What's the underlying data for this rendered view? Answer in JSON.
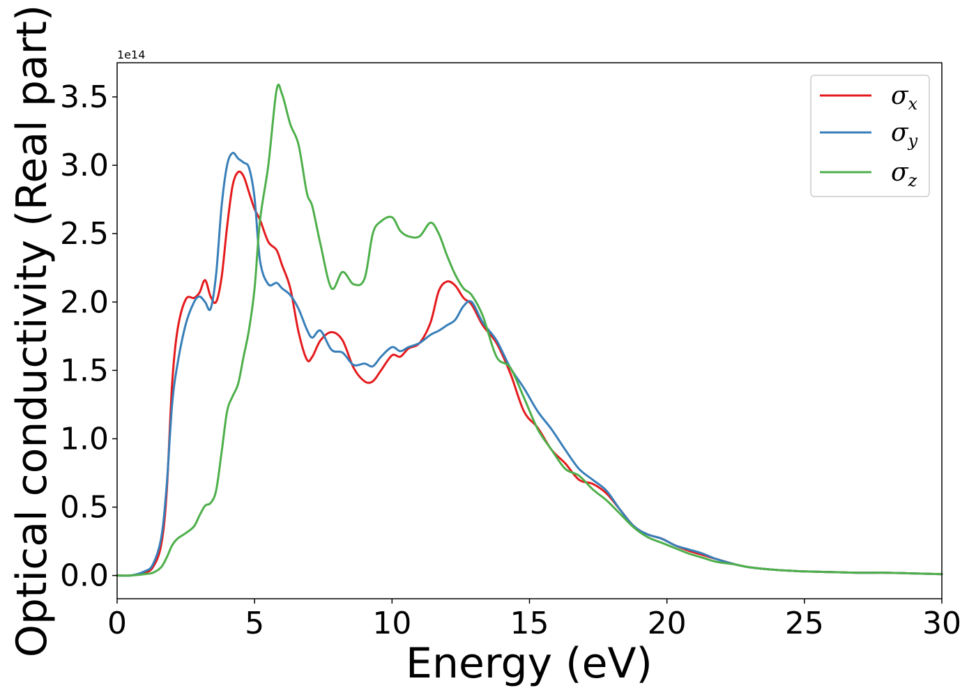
{
  "chart_data": {
    "type": "line",
    "xlabel": "Energy (eV)",
    "ylabel": "Optical conductivity (Real part)",
    "y_offset_label": "1e14",
    "xlim": [
      0,
      30
    ],
    "ylim": [
      -0.17,
      3.75
    ],
    "xticks": [
      0,
      5,
      10,
      15,
      20,
      25,
      30
    ],
    "xtick_labels": [
      "0",
      "5",
      "10",
      "15",
      "20",
      "25",
      "30"
    ],
    "yticks": [
      0.0,
      0.5,
      1.0,
      1.5,
      2.0,
      2.5,
      3.0,
      3.5
    ],
    "ytick_labels": [
      "0.0",
      "0.5",
      "1.0",
      "1.5",
      "2.0",
      "2.5",
      "3.0",
      "3.5"
    ],
    "grid": false,
    "legend_position": "top-right",
    "series": [
      {
        "name": "σx",
        "symbol": "σ",
        "subscript": "x",
        "color": "#e41a1c",
        "x": [
          0,
          0.5,
          1.0,
          1.3,
          1.6,
          1.8,
          2.0,
          2.2,
          2.5,
          2.8,
          3.0,
          3.2,
          3.4,
          3.6,
          3.8,
          4.0,
          4.2,
          4.4,
          4.6,
          4.8,
          5.0,
          5.2,
          5.5,
          5.8,
          6.0,
          6.3,
          6.6,
          6.9,
          7.1,
          7.4,
          7.8,
          8.2,
          8.6,
          9.0,
          9.3,
          9.6,
          10.0,
          10.3,
          10.6,
          11.0,
          11.4,
          11.7,
          12.0,
          12.3,
          12.6,
          12.9,
          13.3,
          13.8,
          14.3,
          14.8,
          15.3,
          15.8,
          16.3,
          16.8,
          17.3,
          17.8,
          18.3,
          18.8,
          19.3,
          19.8,
          20.3,
          20.8,
          21.3,
          21.8,
          22.5,
          23.0,
          24.0,
          25.0,
          26.0,
          27.0,
          28.0,
          29.0,
          30.0
        ],
        "values": [
          0.0,
          0.0,
          0.02,
          0.06,
          0.22,
          0.6,
          1.4,
          1.8,
          2.02,
          2.03,
          2.07,
          2.16,
          2.04,
          2.0,
          2.18,
          2.55,
          2.85,
          2.95,
          2.92,
          2.8,
          2.68,
          2.6,
          2.44,
          2.38,
          2.27,
          2.1,
          1.78,
          1.58,
          1.6,
          1.72,
          1.78,
          1.72,
          1.52,
          1.42,
          1.42,
          1.5,
          1.61,
          1.6,
          1.66,
          1.7,
          1.85,
          2.08,
          2.15,
          2.12,
          2.03,
          1.98,
          1.83,
          1.7,
          1.48,
          1.2,
          1.08,
          0.92,
          0.82,
          0.7,
          0.67,
          0.6,
          0.48,
          0.36,
          0.3,
          0.27,
          0.22,
          0.18,
          0.15,
          0.12,
          0.08,
          0.06,
          0.04,
          0.03,
          0.025,
          0.02,
          0.02,
          0.015,
          0.01
        ]
      },
      {
        "name": "σy",
        "symbol": "σ",
        "subscript": "y",
        "color": "#377eb8",
        "x": [
          0,
          0.5,
          1.0,
          1.3,
          1.6,
          1.8,
          2.0,
          2.2,
          2.5,
          2.8,
          3.0,
          3.2,
          3.4,
          3.6,
          3.8,
          4.0,
          4.2,
          4.4,
          4.6,
          4.8,
          5.0,
          5.2,
          5.5,
          5.8,
          6.0,
          6.3,
          6.6,
          6.9,
          7.1,
          7.4,
          7.8,
          8.2,
          8.6,
          9.0,
          9.3,
          9.6,
          10.0,
          10.3,
          10.6,
          11.0,
          11.4,
          11.7,
          12.0,
          12.3,
          12.6,
          12.9,
          13.3,
          13.8,
          14.3,
          14.8,
          15.3,
          15.8,
          16.3,
          16.8,
          17.3,
          17.8,
          18.3,
          18.8,
          19.3,
          19.8,
          20.3,
          20.8,
          21.3,
          21.8,
          22.5,
          23.0,
          24.0,
          25.0,
          26.0,
          27.0,
          28.0,
          29.0,
          30.0
        ],
        "values": [
          0.0,
          0.0,
          0.03,
          0.08,
          0.27,
          0.65,
          1.25,
          1.55,
          1.84,
          2.0,
          2.04,
          2.0,
          1.95,
          2.2,
          2.7,
          3.0,
          3.09,
          3.05,
          3.02,
          2.98,
          2.76,
          2.3,
          2.13,
          2.14,
          2.1,
          2.05,
          1.95,
          1.8,
          1.74,
          1.79,
          1.65,
          1.63,
          1.54,
          1.55,
          1.53,
          1.6,
          1.67,
          1.64,
          1.67,
          1.7,
          1.76,
          1.79,
          1.83,
          1.87,
          1.97,
          2.0,
          1.85,
          1.72,
          1.52,
          1.37,
          1.2,
          1.07,
          0.92,
          0.78,
          0.7,
          0.62,
          0.48,
          0.36,
          0.3,
          0.27,
          0.22,
          0.19,
          0.16,
          0.12,
          0.08,
          0.06,
          0.04,
          0.03,
          0.025,
          0.02,
          0.02,
          0.015,
          0.01
        ]
      },
      {
        "name": "σz",
        "symbol": "σ",
        "subscript": "z",
        "color": "#4daf4a",
        "x": [
          0,
          0.5,
          1.0,
          1.3,
          1.6,
          1.8,
          2.0,
          2.2,
          2.5,
          2.8,
          3.0,
          3.2,
          3.4,
          3.6,
          3.8,
          4.0,
          4.2,
          4.4,
          4.6,
          4.8,
          5.0,
          5.2,
          5.5,
          5.8,
          6.0,
          6.3,
          6.6,
          6.9,
          7.1,
          7.4,
          7.8,
          8.2,
          8.6,
          9.0,
          9.3,
          9.6,
          10.0,
          10.3,
          10.6,
          11.0,
          11.4,
          11.7,
          12.0,
          12.3,
          12.6,
          12.9,
          13.3,
          13.8,
          14.3,
          14.8,
          15.3,
          15.8,
          16.3,
          16.8,
          17.3,
          17.8,
          18.3,
          18.8,
          19.3,
          19.8,
          20.3,
          20.8,
          21.3,
          21.8,
          22.5,
          23.0,
          24.0,
          25.0,
          26.0,
          27.0,
          28.0,
          29.0,
          30.0
        ],
        "values": [
          0.0,
          0.0,
          0.01,
          0.02,
          0.06,
          0.13,
          0.22,
          0.27,
          0.31,
          0.36,
          0.44,
          0.51,
          0.53,
          0.62,
          0.9,
          1.2,
          1.31,
          1.4,
          1.6,
          1.8,
          2.1,
          2.6,
          3.0,
          3.55,
          3.52,
          3.3,
          3.15,
          2.8,
          2.7,
          2.42,
          2.1,
          2.22,
          2.13,
          2.17,
          2.5,
          2.59,
          2.62,
          2.52,
          2.48,
          2.48,
          2.58,
          2.5,
          2.34,
          2.2,
          2.1,
          2.05,
          1.9,
          1.6,
          1.52,
          1.3,
          1.07,
          0.92,
          0.78,
          0.73,
          0.63,
          0.55,
          0.45,
          0.35,
          0.28,
          0.24,
          0.2,
          0.16,
          0.13,
          0.1,
          0.08,
          0.06,
          0.04,
          0.03,
          0.025,
          0.02,
          0.02,
          0.015,
          0.01
        ]
      }
    ]
  }
}
